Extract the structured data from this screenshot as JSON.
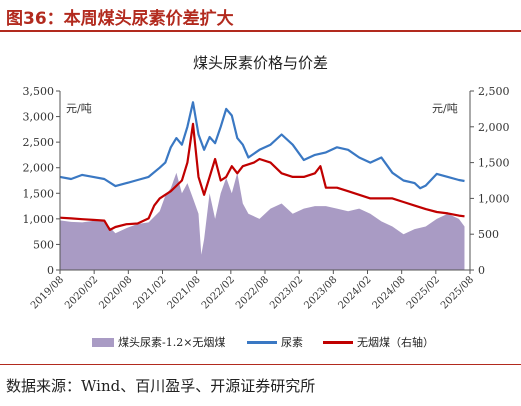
{
  "figure": {
    "title": "图36：本周煤头尿素价差扩大",
    "source": "数据来源：Wind、百川盈孚、开源证券研究所"
  },
  "colors": {
    "accent": "#b22a1e",
    "spread_fill": "#a99bc4",
    "urea_line": "#3a78c3",
    "anthracite_line": "#c00000"
  },
  "chart_data": {
    "type": "line",
    "title": "煤头尿素价格与价差",
    "left_unit": "元/吨",
    "right_unit": "元/吨",
    "ylim_left": [
      0,
      3500
    ],
    "ylim_right": [
      0,
      2500
    ],
    "y_ticks_left": [
      "0",
      "500",
      "1,000",
      "1,500",
      "2,000",
      "2,500",
      "3,000",
      "3,500"
    ],
    "y_ticks_right": [
      "0",
      "500",
      "1,000",
      "1,500",
      "2,000",
      "2,500"
    ],
    "x_ticks": [
      "2019/08",
      "2020/02",
      "2020/08",
      "2021/02",
      "2021/08",
      "2022/02",
      "2022/08",
      "2023/02",
      "2023/08",
      "2024/02",
      "2024/08",
      "2025/02",
      "2025/08"
    ],
    "xlim": [
      0,
      74
    ],
    "grid": false,
    "legend": "bottom",
    "series": [
      {
        "name": "煤头尿素-1.2×无烟煤",
        "type": "area",
        "axis": "left",
        "points": [
          [
            0,
            970
          ],
          [
            2,
            940
          ],
          [
            4,
            930
          ],
          [
            6,
            960
          ],
          [
            8,
            950
          ],
          [
            10,
            720
          ],
          [
            12,
            820
          ],
          [
            14,
            900
          ],
          [
            16,
            930
          ],
          [
            18,
            1150
          ],
          [
            19,
            1450
          ],
          [
            20,
            1600
          ],
          [
            21,
            1900
          ],
          [
            22,
            1500
          ],
          [
            23,
            1700
          ],
          [
            24,
            1400
          ],
          [
            25,
            1100
          ],
          [
            25.5,
            300
          ],
          [
            26,
            600
          ],
          [
            27,
            1500
          ],
          [
            28,
            1000
          ],
          [
            29,
            1500
          ],
          [
            30,
            1800
          ],
          [
            31,
            1500
          ],
          [
            32,
            1900
          ],
          [
            33,
            1300
          ],
          [
            34,
            1100
          ],
          [
            36,
            1000
          ],
          [
            38,
            1200
          ],
          [
            40,
            1300
          ],
          [
            42,
            1100
          ],
          [
            44,
            1200
          ],
          [
            46,
            1250
          ],
          [
            48,
            1250
          ],
          [
            50,
            1200
          ],
          [
            52,
            1150
          ],
          [
            54,
            1200
          ],
          [
            56,
            1100
          ],
          [
            58,
            950
          ],
          [
            60,
            850
          ],
          [
            62,
            700
          ],
          [
            64,
            800
          ],
          [
            66,
            850
          ],
          [
            68,
            1000
          ],
          [
            70,
            1100
          ],
          [
            72,
            1000
          ],
          [
            73,
            850
          ]
        ]
      },
      {
        "name": "尿素",
        "type": "line",
        "axis": "left",
        "points": [
          [
            0,
            1820
          ],
          [
            2,
            1780
          ],
          [
            4,
            1860
          ],
          [
            6,
            1820
          ],
          [
            8,
            1780
          ],
          [
            10,
            1640
          ],
          [
            12,
            1700
          ],
          [
            14,
            1760
          ],
          [
            16,
            1820
          ],
          [
            18,
            2000
          ],
          [
            19,
            2100
          ],
          [
            20,
            2400
          ],
          [
            21,
            2580
          ],
          [
            22,
            2450
          ],
          [
            23,
            2800
          ],
          [
            24,
            3280
          ],
          [
            25,
            2650
          ],
          [
            26,
            2350
          ],
          [
            27,
            2600
          ],
          [
            28,
            2480
          ],
          [
            29,
            2800
          ],
          [
            30,
            3150
          ],
          [
            31,
            3020
          ],
          [
            32,
            2580
          ],
          [
            33,
            2450
          ],
          [
            34,
            2200
          ],
          [
            36,
            2350
          ],
          [
            38,
            2450
          ],
          [
            40,
            2650
          ],
          [
            42,
            2450
          ],
          [
            44,
            2150
          ],
          [
            46,
            2250
          ],
          [
            48,
            2300
          ],
          [
            50,
            2400
          ],
          [
            52,
            2350
          ],
          [
            54,
            2200
          ],
          [
            56,
            2100
          ],
          [
            58,
            2200
          ],
          [
            60,
            1900
          ],
          [
            62,
            1750
          ],
          [
            64,
            1700
          ],
          [
            65,
            1600
          ],
          [
            66,
            1650
          ],
          [
            68,
            1880
          ],
          [
            70,
            1820
          ],
          [
            72,
            1760
          ],
          [
            73,
            1740
          ]
        ]
      },
      {
        "name": "无烟煤（右轴）",
        "type": "line",
        "axis": "right",
        "points": [
          [
            0,
            730
          ],
          [
            2,
            720
          ],
          [
            4,
            710
          ],
          [
            6,
            700
          ],
          [
            8,
            690
          ],
          [
            9,
            560
          ],
          [
            10,
            600
          ],
          [
            12,
            640
          ],
          [
            14,
            650
          ],
          [
            16,
            720
          ],
          [
            17,
            900
          ],
          [
            18,
            1000
          ],
          [
            20,
            1100
          ],
          [
            22,
            1250
          ],
          [
            23,
            1500
          ],
          [
            24,
            2040
          ],
          [
            25,
            1300
          ],
          [
            26,
            1050
          ],
          [
            27,
            1300
          ],
          [
            28,
            1550
          ],
          [
            29,
            1250
          ],
          [
            30,
            1300
          ],
          [
            31,
            1450
          ],
          [
            32,
            1350
          ],
          [
            33,
            1450
          ],
          [
            35,
            1500
          ],
          [
            36,
            1550
          ],
          [
            38,
            1500
          ],
          [
            40,
            1350
          ],
          [
            42,
            1300
          ],
          [
            44,
            1300
          ],
          [
            46,
            1350
          ],
          [
            47,
            1450
          ],
          [
            48,
            1150
          ],
          [
            50,
            1150
          ],
          [
            52,
            1100
          ],
          [
            54,
            1050
          ],
          [
            56,
            1000
          ],
          [
            58,
            1000
          ],
          [
            60,
            1000
          ],
          [
            62,
            950
          ],
          [
            64,
            900
          ],
          [
            66,
            850
          ],
          [
            68,
            810
          ],
          [
            70,
            790
          ],
          [
            72,
            760
          ],
          [
            73,
            750
          ]
        ]
      }
    ]
  }
}
